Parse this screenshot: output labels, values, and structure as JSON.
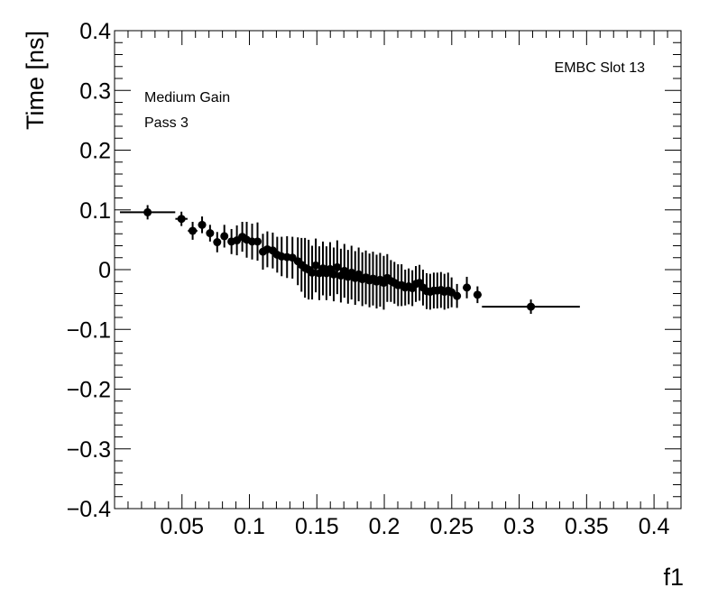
{
  "chart_data": {
    "type": "scatter",
    "title": "",
    "xlabel": "f1",
    "ylabel": "Time [ns]",
    "xlim": [
      0.0,
      0.42
    ],
    "ylim": [
      -0.4,
      0.4
    ],
    "x_ticks": [
      {
        "v": 0.05,
        "label": "0.05"
      },
      {
        "v": 0.1,
        "label": "0.1"
      },
      {
        "v": 0.15,
        "label": "0.15"
      },
      {
        "v": 0.2,
        "label": "0.2"
      },
      {
        "v": 0.25,
        "label": "0.25"
      },
      {
        "v": 0.3,
        "label": "0.3"
      },
      {
        "v": 0.35,
        "label": "0.35"
      },
      {
        "v": 0.4,
        "label": "0.4"
      }
    ],
    "y_ticks": [
      {
        "v": 0.4,
        "label": "0.4"
      },
      {
        "v": 0.3,
        "label": "0.3"
      },
      {
        "v": 0.2,
        "label": "0.2"
      },
      {
        "v": 0.1,
        "label": "0.1"
      },
      {
        "v": 0.0,
        "label": "0"
      },
      {
        "v": -0.1,
        "label": "−0.1"
      },
      {
        "v": -0.2,
        "label": "−0.2"
      },
      {
        "v": -0.3,
        "label": "−0.3"
      },
      {
        "v": -0.4,
        "label": "−0.4"
      }
    ],
    "annotations": {
      "top_right": "EMBC Slot 13",
      "line1": "Medium Gain",
      "line2": "Pass 3"
    },
    "grid": false,
    "marker_color": "#000000",
    "points": [
      {
        "x": 0.0245,
        "y": 0.096,
        "xerr": 0.0205,
        "yerr": 0.012
      },
      {
        "x": 0.0496,
        "y": 0.085,
        "xerr": 0.0045,
        "yerr": 0.012
      },
      {
        "x": 0.0579,
        "y": 0.065,
        "xerr": 0.0035,
        "yerr": 0.015
      },
      {
        "x": 0.0649,
        "y": 0.075,
        "xerr": 0.003,
        "yerr": 0.014
      },
      {
        "x": 0.0708,
        "y": 0.061,
        "xerr": 0.0025,
        "yerr": 0.014
      },
      {
        "x": 0.0761,
        "y": 0.046,
        "xerr": 0.0025,
        "yerr": 0.017
      },
      {
        "x": 0.0814,
        "y": 0.056,
        "xerr": 0.0025,
        "yerr": 0.019
      },
      {
        "x": 0.0867,
        "y": 0.047,
        "xerr": 0.002,
        "yerr": 0.021
      },
      {
        "x": 0.0907,
        "y": 0.049,
        "xerr": 0.002,
        "yerr": 0.025
      },
      {
        "x": 0.0947,
        "y": 0.055,
        "xerr": 0.002,
        "yerr": 0.025
      },
      {
        "x": 0.098,
        "y": 0.05,
        "xerr": 0.002,
        "yerr": 0.03
      },
      {
        "x": 0.102,
        "y": 0.047,
        "xerr": 0.002,
        "yerr": 0.03
      },
      {
        "x": 0.106,
        "y": 0.047,
        "xerr": 0.002,
        "yerr": 0.032
      },
      {
        "x": 0.11,
        "y": 0.03,
        "xerr": 0.002,
        "yerr": 0.03
      },
      {
        "x": 0.1133,
        "y": 0.034,
        "xerr": 0.002,
        "yerr": 0.03
      },
      {
        "x": 0.1173,
        "y": 0.032,
        "xerr": 0.002,
        "yerr": 0.03
      },
      {
        "x": 0.1206,
        "y": 0.025,
        "xerr": 0.002,
        "yerr": 0.03
      },
      {
        "x": 0.1239,
        "y": 0.022,
        "xerr": 0.002,
        "yerr": 0.033
      },
      {
        "x": 0.1279,
        "y": 0.021,
        "xerr": 0.002,
        "yerr": 0.035
      },
      {
        "x": 0.1319,
        "y": 0.02,
        "xerr": 0.002,
        "yerr": 0.035
      },
      {
        "x": 0.1359,
        "y": 0.014,
        "xerr": 0.002,
        "yerr": 0.04
      },
      {
        "x": 0.1386,
        "y": 0.008,
        "xerr": 0.0015,
        "yerr": 0.045
      },
      {
        "x": 0.1412,
        "y": 0.003,
        "xerr": 0.0015,
        "yerr": 0.05
      },
      {
        "x": 0.1439,
        "y": 0.0,
        "xerr": 0.0015,
        "yerr": 0.05
      },
      {
        "x": 0.1465,
        "y": -0.005,
        "xerr": 0.0015,
        "yerr": 0.045
      },
      {
        "x": 0.1492,
        "y": 0.007,
        "xerr": 0.0015,
        "yerr": 0.045
      },
      {
        "x": 0.1518,
        "y": -0.006,
        "xerr": 0.0015,
        "yerr": 0.045
      },
      {
        "x": 0.1545,
        "y": 0.002,
        "xerr": 0.0015,
        "yerr": 0.045
      },
      {
        "x": 0.1571,
        "y": -0.006,
        "xerr": 0.0015,
        "yerr": 0.045
      },
      {
        "x": 0.1598,
        "y": 0.001,
        "xerr": 0.0015,
        "yerr": 0.045
      },
      {
        "x": 0.1625,
        "y": -0.008,
        "xerr": 0.0015,
        "yerr": 0.045
      },
      {
        "x": 0.1651,
        "y": 0.004,
        "xerr": 0.0015,
        "yerr": 0.045
      },
      {
        "x": 0.1678,
        "y": -0.01,
        "xerr": 0.0015,
        "yerr": 0.045
      },
      {
        "x": 0.1704,
        "y": -0.002,
        "xerr": 0.0015,
        "yerr": 0.045
      },
      {
        "x": 0.1731,
        "y": -0.012,
        "xerr": 0.0015,
        "yerr": 0.045
      },
      {
        "x": 0.1757,
        "y": -0.005,
        "xerr": 0.0015,
        "yerr": 0.045
      },
      {
        "x": 0.1784,
        "y": -0.014,
        "xerr": 0.0015,
        "yerr": 0.045
      },
      {
        "x": 0.181,
        "y": -0.008,
        "xerr": 0.0015,
        "yerr": 0.045
      },
      {
        "x": 0.1837,
        "y": -0.016,
        "xerr": 0.0015,
        "yerr": 0.045
      },
      {
        "x": 0.1863,
        "y": -0.013,
        "xerr": 0.0015,
        "yerr": 0.045
      },
      {
        "x": 0.189,
        "y": -0.018,
        "xerr": 0.0015,
        "yerr": 0.045
      },
      {
        "x": 0.1916,
        "y": -0.015,
        "xerr": 0.0015,
        "yerr": 0.045
      },
      {
        "x": 0.1943,
        "y": -0.02,
        "xerr": 0.0015,
        "yerr": 0.045
      },
      {
        "x": 0.1969,
        "y": -0.017,
        "xerr": 0.0015,
        "yerr": 0.045
      },
      {
        "x": 0.1996,
        "y": -0.022,
        "xerr": 0.0015,
        "yerr": 0.045
      },
      {
        "x": 0.2022,
        "y": -0.014,
        "xerr": 0.0015,
        "yerr": 0.04
      },
      {
        "x": 0.2049,
        "y": -0.019,
        "xerr": 0.0015,
        "yerr": 0.035
      },
      {
        "x": 0.2075,
        "y": -0.022,
        "xerr": 0.0015,
        "yerr": 0.035
      },
      {
        "x": 0.2102,
        "y": -0.026,
        "xerr": 0.0015,
        "yerr": 0.035
      },
      {
        "x": 0.2128,
        "y": -0.026,
        "xerr": 0.0015,
        "yerr": 0.035
      },
      {
        "x": 0.2155,
        "y": -0.03,
        "xerr": 0.0015,
        "yerr": 0.03
      },
      {
        "x": 0.2181,
        "y": -0.028,
        "xerr": 0.0015,
        "yerr": 0.03
      },
      {
        "x": 0.2208,
        "y": -0.031,
        "xerr": 0.0015,
        "yerr": 0.03
      },
      {
        "x": 0.2234,
        "y": -0.024,
        "xerr": 0.0015,
        "yerr": 0.03
      },
      {
        "x": 0.2261,
        "y": -0.022,
        "xerr": 0.0015,
        "yerr": 0.03
      },
      {
        "x": 0.2287,
        "y": -0.03,
        "xerr": 0.0015,
        "yerr": 0.03
      },
      {
        "x": 0.2314,
        "y": -0.036,
        "xerr": 0.0015,
        "yerr": 0.03
      },
      {
        "x": 0.234,
        "y": -0.037,
        "xerr": 0.0015,
        "yerr": 0.03
      },
      {
        "x": 0.2367,
        "y": -0.035,
        "xerr": 0.0015,
        "yerr": 0.03
      },
      {
        "x": 0.2393,
        "y": -0.035,
        "xerr": 0.0015,
        "yerr": 0.03
      },
      {
        "x": 0.242,
        "y": -0.034,
        "xerr": 0.0015,
        "yerr": 0.03
      },
      {
        "x": 0.2446,
        "y": -0.037,
        "xerr": 0.0015,
        "yerr": 0.03
      },
      {
        "x": 0.2473,
        "y": -0.035,
        "xerr": 0.0015,
        "yerr": 0.03
      },
      {
        "x": 0.2499,
        "y": -0.038,
        "xerr": 0.0015,
        "yerr": 0.025
      },
      {
        "x": 0.2539,
        "y": -0.044,
        "xerr": 0.0025,
        "yerr": 0.02
      },
      {
        "x": 0.2612,
        "y": -0.03,
        "xerr": 0.003,
        "yerr": 0.018
      },
      {
        "x": 0.2691,
        "y": -0.042,
        "xerr": 0.003,
        "yerr": 0.014
      },
      {
        "x": 0.3087,
        "y": -0.062,
        "xerr": 0.0363,
        "yerr": 0.012
      }
    ]
  }
}
